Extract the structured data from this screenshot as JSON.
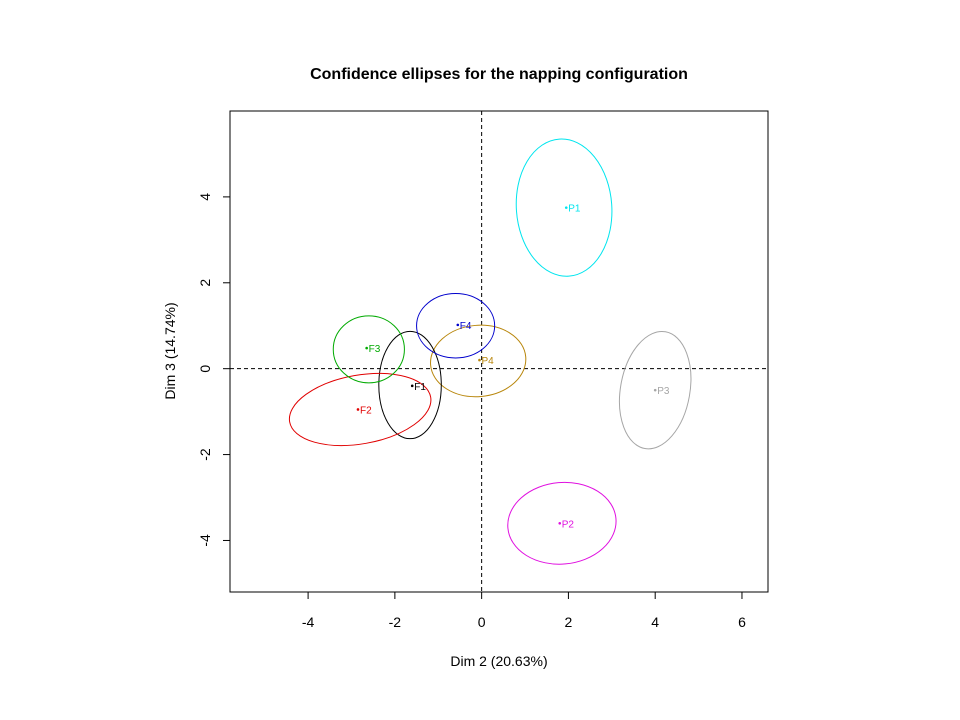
{
  "chart_data": {
    "type": "scatter",
    "title": "Confidence ellipses for the napping configuration",
    "xlabel": "Dim 2 (20.63%)",
    "ylabel": "Dim 3 (14.74%)",
    "xlim": [
      -5.8,
      6.6
    ],
    "ylim": [
      -5.2,
      6.0
    ],
    "xticks": [
      -4,
      -2,
      0,
      2,
      4,
      6
    ],
    "yticks": [
      -4,
      -2,
      0,
      2,
      4
    ],
    "xtick_labels": [
      "-4",
      "-2",
      "0",
      "2",
      "4",
      "6"
    ],
    "ytick_labels": [
      "-4",
      "-2",
      "0",
      "2",
      "4"
    ],
    "reference_lines": {
      "x": 0,
      "y": 0,
      "style": "dashed"
    },
    "grid": false,
    "points": [
      {
        "label": "P1",
        "x": 1.95,
        "y": 3.75,
        "color": "#00e5ee",
        "ellipse": {
          "cx": 1.9,
          "cy": 3.75,
          "rx": 1.1,
          "ry": 1.6,
          "angle": -4
        }
      },
      {
        "label": "P2",
        "x": 1.8,
        "y": -3.6,
        "color": "#e010e0",
        "ellipse": {
          "cx": 1.85,
          "cy": -3.6,
          "rx": 1.25,
          "ry": 0.95,
          "angle": -5
        }
      },
      {
        "label": "P3",
        "x": 4.0,
        "y": -0.5,
        "color": "#a6a6a6",
        "ellipse": {
          "cx": 4.0,
          "cy": -0.5,
          "rx": 0.8,
          "ry": 1.38,
          "angle": 10
        }
      },
      {
        "label": "P4",
        "x": -0.05,
        "y": 0.2,
        "color": "#b8860b",
        "ellipse": {
          "cx": -0.08,
          "cy": 0.18,
          "rx": 1.1,
          "ry": 0.83,
          "angle": -5
        }
      },
      {
        "label": "F1",
        "x": -1.6,
        "y": -0.4,
        "color": "#000000",
        "ellipse": {
          "cx": -1.65,
          "cy": -0.38,
          "rx": 0.72,
          "ry": 1.25,
          "angle": 0
        }
      },
      {
        "label": "F2",
        "x": -2.85,
        "y": -0.95,
        "color": "#e00000",
        "ellipse": {
          "cx": -2.8,
          "cy": -0.95,
          "rx": 1.65,
          "ry": 0.8,
          "angle": -10
        }
      },
      {
        "label": "F3",
        "x": -2.65,
        "y": 0.48,
        "color": "#00aa00",
        "ellipse": {
          "cx": -2.6,
          "cy": 0.45,
          "rx": 0.82,
          "ry": 0.78,
          "angle": 0
        }
      },
      {
        "label": "F4",
        "x": -0.55,
        "y": 1.02,
        "color": "#0000cc",
        "ellipse": {
          "cx": -0.6,
          "cy": 1.0,
          "rx": 0.9,
          "ry": 0.75,
          "angle": 0
        }
      }
    ]
  }
}
